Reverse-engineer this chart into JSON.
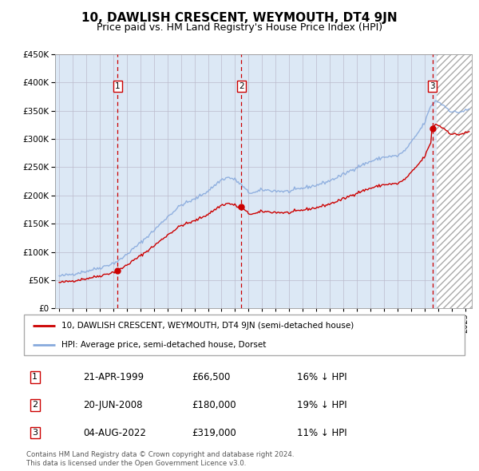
{
  "title": "10, DAWLISH CRESCENT, WEYMOUTH, DT4 9JN",
  "subtitle": "Price paid vs. HM Land Registry's House Price Index (HPI)",
  "title_fontsize": 11,
  "subtitle_fontsize": 9,
  "ylim": [
    0,
    450000
  ],
  "xlim_start": 1994.7,
  "xlim_end": 2025.5,
  "ytick_labels": [
    "£0",
    "£50K",
    "£100K",
    "£150K",
    "£200K",
    "£250K",
    "£300K",
    "£350K",
    "£400K",
    "£450K"
  ],
  "ytick_values": [
    0,
    50000,
    100000,
    150000,
    200000,
    250000,
    300000,
    350000,
    400000,
    450000
  ],
  "plot_bg_color": "#dce8f5",
  "grid_color": "#bbbbcc",
  "hatch_color": "#aaaaaa",
  "sale_color": "#cc0000",
  "hpi_color": "#88aadd",
  "vline_color": "#cc0000",
  "hatch_start": 2022.9,
  "purchases": [
    {
      "date": 1999.31,
      "price": 66500,
      "label": "1"
    },
    {
      "date": 2008.47,
      "price": 180000,
      "label": "2"
    },
    {
      "date": 2022.59,
      "price": 319000,
      "label": "3"
    }
  ],
  "legend_sale_label": "10, DAWLISH CRESCENT, WEYMOUTH, DT4 9JN (semi-detached house)",
  "legend_hpi_label": "HPI: Average price, semi-detached house, Dorset",
  "table_rows": [
    {
      "num": "1",
      "date": "21-APR-1999",
      "price": "£66,500",
      "hpi": "16% ↓ HPI"
    },
    {
      "num": "2",
      "date": "20-JUN-2008",
      "price": "£180,000",
      "hpi": "19% ↓ HPI"
    },
    {
      "num": "3",
      "date": "04-AUG-2022",
      "price": "£319,000",
      "hpi": "11% ↓ HPI"
    }
  ],
  "footer": "Contains HM Land Registry data © Crown copyright and database right 2024.\nThis data is licensed under the Open Government Licence v3.0."
}
